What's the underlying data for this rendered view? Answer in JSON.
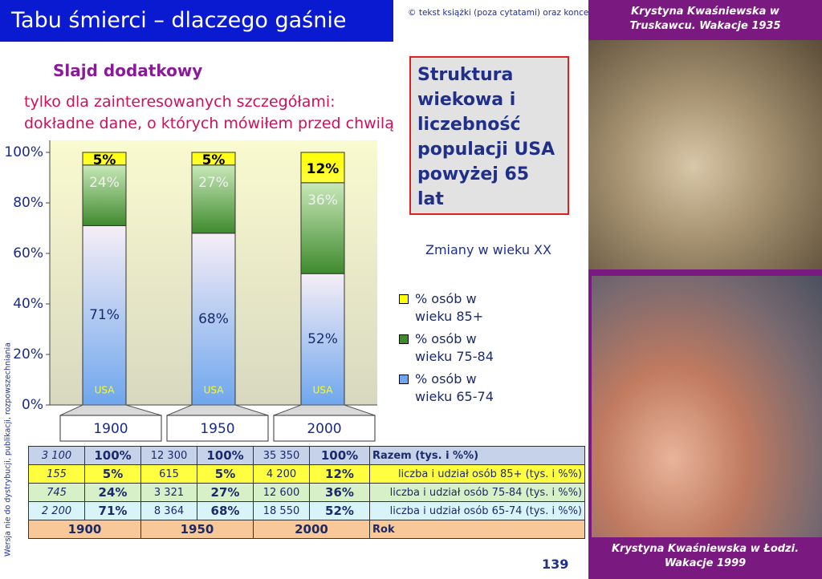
{
  "header": {
    "title": "Tabu śmierci – dlaczego gaśnie",
    "copyright": "© tekst książki (poza cytatami) oraz koncepcja i"
  },
  "subtitle": "Slajd dodatkowy",
  "note": "tylko dla zainteresowanych szczegółami: dokładne dane, o których mówiłem przed chwilą",
  "box_text": "Struktura wiekowa i liczebność populacji USA powyżej 65 lat",
  "changes": "Zmiany w wieku XX",
  "side_note": "Wersja nie do dystrybucji, publikacji, rozpowszechniania",
  "photos": {
    "top_caption": "Krystyna Kwaśniewska w Truskawcu. Wakacje 1935",
    "bottom_caption": "Krystyna Kwaśniewska w Łodzi. Wakacje 1999"
  },
  "page_number": "139",
  "chart_data": {
    "type": "stacked_bar",
    "categories": [
      "1900",
      "1950",
      "2000"
    ],
    "bar_annotations": [
      "USA",
      "USA",
      "USA"
    ],
    "series": [
      {
        "name": "% osób w wieku 65-74",
        "color": "#6fa6ee",
        "values": [
          71,
          68,
          52
        ],
        "value_labels": [
          "71%",
          "68%",
          "52%"
        ]
      },
      {
        "name": "% osób w wieku 75-84",
        "color": "#3f8a2e",
        "values": [
          24,
          27,
          36
        ],
        "value_labels": [
          "24%",
          "27%",
          "36%"
        ]
      },
      {
        "name": "% osób w wieku 85+",
        "color": "#ffff00",
        "values": [
          5,
          5,
          12
        ],
        "value_labels": [
          "5%",
          "5%",
          "12%"
        ]
      }
    ],
    "ylim": [
      0,
      100
    ],
    "yticks": [
      {
        "value": 0,
        "label": "0%"
      },
      {
        "value": 20,
        "label": "20%"
      },
      {
        "value": 40,
        "label": "40%"
      },
      {
        "value": 60,
        "label": "60%"
      },
      {
        "value": 80,
        "label": "80%"
      },
      {
        "value": 100,
        "label": "100%"
      }
    ]
  },
  "table": {
    "rows": [
      [
        "3 100",
        "100%",
        "12 300",
        "100%",
        "35 350",
        "100%",
        "Razem (tys. i %%)"
      ],
      [
        "155",
        "5%",
        "615",
        "5%",
        "4 200",
        "12%",
        "liczba i udział osób 85+ (tys. i %%)"
      ],
      [
        "745",
        "24%",
        "3 321",
        "27%",
        "12 600",
        "36%",
        "liczba i udział osób 75-84 (tys. i %%)"
      ],
      [
        "2 200",
        "71%",
        "8 364",
        "68%",
        "18 550",
        "52%",
        "liczba i udział osób 65-74 (tys. i %%)"
      ],
      [
        "1900",
        "1950",
        "2000",
        "Rok"
      ]
    ]
  }
}
